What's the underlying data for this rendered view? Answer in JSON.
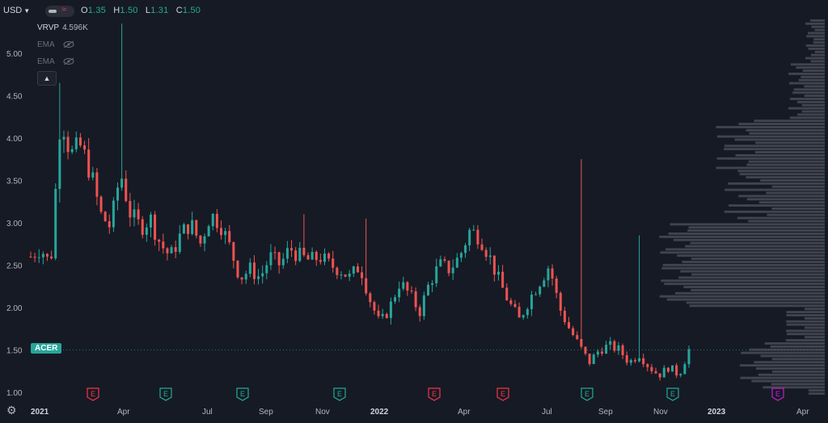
{
  "header": {
    "currency": "USD",
    "ohlc": [
      {
        "key": "O",
        "value": "1.35"
      },
      {
        "key": "H",
        "value": "1.50"
      },
      {
        "key": "L",
        "value": "1.31"
      },
      {
        "key": "C",
        "value": "1.50"
      }
    ]
  },
  "indicators": {
    "vrvp": {
      "name": "VRVP",
      "value": "4.596K"
    },
    "ema1": {
      "name": "EMA"
    },
    "ema2": {
      "name": "EMA"
    }
  },
  "symbol": {
    "label": "ACER",
    "last": 1.5
  },
  "colors": {
    "up": "#26a69a",
    "down": "#ef5350",
    "volume": "#5d606b",
    "bg": "#161a25",
    "earnings_down": "#f23645",
    "earnings_up": "#22ab94",
    "earnings_future": "#c020c8"
  },
  "chart_data": {
    "type": "candlestick",
    "y_ticks": [
      "1.00",
      "1.50",
      "2.00",
      "2.50",
      "3.00",
      "3.50",
      "4.00",
      "4.50",
      "5.00"
    ],
    "x_ticks": [
      "2021",
      "Apr",
      "Jul",
      "Sep",
      "Nov",
      "2022",
      "Apr",
      "Jul",
      "Sep",
      "Nov",
      "2023",
      "Apr"
    ],
    "ylim": [
      0.96,
      5.4
    ],
    "price_path": [
      [
        0,
        2.6
      ],
      [
        2,
        2.7
      ],
      [
        4,
        2.5
      ],
      [
        6,
        4.3
      ],
      [
        8,
        3.8
      ],
      [
        10,
        3.9
      ],
      [
        12,
        3.6
      ],
      [
        14,
        3.1
      ],
      [
        16,
        2.95
      ],
      [
        18,
        3.6
      ],
      [
        20,
        3.1
      ],
      [
        22,
        2.95
      ],
      [
        24,
        3.05
      ],
      [
        26,
        2.75
      ],
      [
        28,
        2.6
      ],
      [
        30,
        2.85
      ],
      [
        32,
        3.0
      ],
      [
        34,
        2.75
      ],
      [
        36,
        3.1
      ],
      [
        38,
        3.0
      ],
      [
        40,
        2.7
      ],
      [
        42,
        2.35
      ],
      [
        44,
        2.45
      ],
      [
        46,
        2.35
      ],
      [
        48,
        2.6
      ],
      [
        50,
        2.5
      ],
      [
        52,
        2.7
      ],
      [
        54,
        2.6
      ],
      [
        56,
        2.55
      ],
      [
        58,
        2.6
      ],
      [
        60,
        2.5
      ],
      [
        62,
        2.45
      ],
      [
        64,
        2.35
      ],
      [
        66,
        2.5
      ],
      [
        68,
        2.1
      ],
      [
        70,
        1.8
      ],
      [
        72,
        2.0
      ],
      [
        74,
        2.3
      ],
      [
        76,
        2.15
      ],
      [
        78,
        1.95
      ],
      [
        80,
        2.3
      ],
      [
        82,
        2.5
      ],
      [
        84,
        2.45
      ],
      [
        86,
        2.6
      ],
      [
        88,
        2.9
      ],
      [
        90,
        2.85
      ],
      [
        92,
        2.6
      ],
      [
        94,
        2.3
      ],
      [
        96,
        2.05
      ],
      [
        98,
        1.85
      ],
      [
        100,
        2.1
      ],
      [
        102,
        2.3
      ],
      [
        104,
        2.5
      ],
      [
        106,
        2.0
      ],
      [
        108,
        1.75
      ],
      [
        110,
        1.55
      ],
      [
        112,
        1.35
      ],
      [
        114,
        1.5
      ],
      [
        116,
        1.55
      ],
      [
        118,
        1.5
      ],
      [
        120,
        1.35
      ],
      [
        122,
        1.45
      ],
      [
        124,
        1.3
      ],
      [
        126,
        1.2
      ],
      [
        128,
        1.3
      ],
      [
        130,
        1.2
      ],
      [
        132,
        1.5
      ]
    ],
    "spikes": [
      {
        "bar": 7,
        "high": 4.65
      },
      {
        "bar": 22,
        "high": 5.35
      },
      {
        "bar": 66,
        "high": 3.1
      },
      {
        "bar": 81,
        "high": 3.05
      },
      {
        "bar": 133,
        "high": 3.75
      },
      {
        "bar": 147,
        "high": 2.85
      }
    ],
    "volume_profile_max": "4.596K",
    "earnings": [
      {
        "month": "Feb 2021",
        "label": "E",
        "type": "down"
      },
      {
        "month": "May 2021",
        "label": "E",
        "type": "up"
      },
      {
        "month": "Aug 2021",
        "label": "E",
        "type": "up"
      },
      {
        "month": "Nov 2021",
        "label": "E",
        "type": "up"
      },
      {
        "month": "Mar 2022",
        "label": "E",
        "type": "down"
      },
      {
        "month": "May 2022",
        "label": "E",
        "type": "down"
      },
      {
        "month": "Aug 2022",
        "label": "E",
        "type": "up"
      },
      {
        "month": "Nov 2022",
        "label": "E",
        "type": "up"
      },
      {
        "month": "Mar 2023",
        "label": "E",
        "type": "future"
      }
    ]
  }
}
